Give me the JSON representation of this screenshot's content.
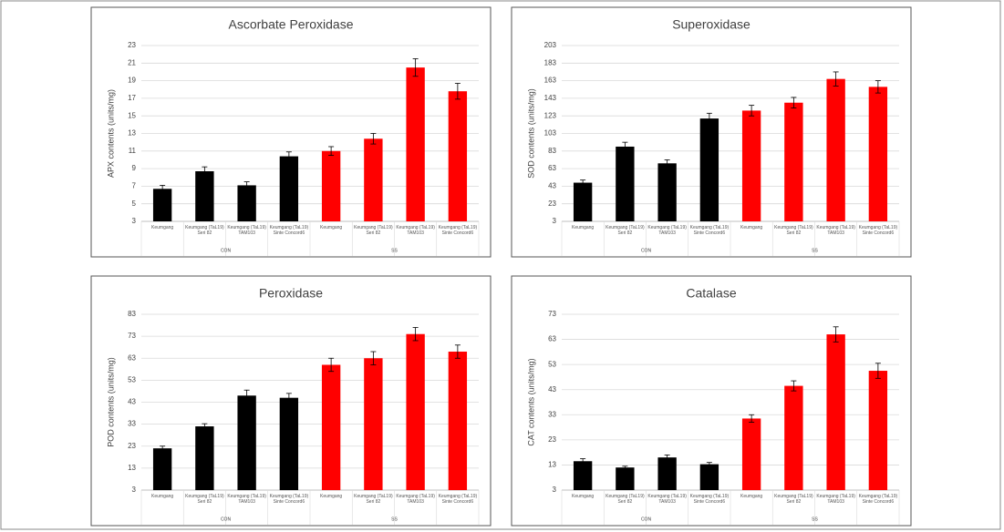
{
  "chart_data": [
    {
      "type": "bar",
      "title": "Ascorbate Peroxidase",
      "y_label": "APX contents (units/mg)",
      "categories": [
        "Keumgang",
        "Keumgang (TaL19) Seri 82",
        "Keumgang (TaL19) TAM103",
        "Keumgang (TaL19) Sinte Concord6",
        "Keumgang",
        "Keumgang (TaL19) Seri 82",
        "Keumgang (TaL19) TAM103",
        "Keumgang (TaL19) Sinte Concord6"
      ],
      "groups": [
        "CON",
        "SS"
      ],
      "values": [
        6.7,
        8.7,
        7.1,
        10.4,
        11.0,
        12.4,
        20.5,
        17.8
      ],
      "errors": [
        0.4,
        0.5,
        0.4,
        0.5,
        0.5,
        0.6,
        1.0,
        0.9
      ],
      "colors": [
        "#000000",
        "#000000",
        "#000000",
        "#000000",
        "#ff0000",
        "#ff0000",
        "#ff0000",
        "#ff0000"
      ],
      "ylim": [
        3,
        23
      ],
      "yticks": [
        3,
        5,
        7,
        9,
        11,
        13,
        15,
        17,
        19,
        21,
        23
      ],
      "grid": true
    },
    {
      "type": "bar",
      "title": "Superoxidase",
      "y_label": "SOD contents (units/mg)",
      "categories": [
        "Keumgang",
        "Keumgang (TaL19) Seri 82",
        "Keumgang (TaL19) TAM103",
        "Keumgang (TaL19) Sinte Concord6",
        "Keumgang",
        "Keumgang (TaL19) Seri 82",
        "Keumgang (TaL19) TAM103",
        "Keumgang (TaL19) Sinte Concord6"
      ],
      "groups": [
        "CON",
        "SS"
      ],
      "values": [
        47,
        88,
        69,
        120,
        129,
        138,
        165,
        156
      ],
      "errors": [
        3,
        5,
        4,
        6,
        6,
        6,
        8,
        7
      ],
      "colors": [
        "#000000",
        "#000000",
        "#000000",
        "#000000",
        "#ff0000",
        "#ff0000",
        "#ff0000",
        "#ff0000"
      ],
      "ylim": [
        3,
        203
      ],
      "yticks": [
        3,
        23,
        43,
        63,
        83,
        103,
        123,
        143,
        163,
        183,
        203
      ],
      "grid": true
    },
    {
      "type": "bar",
      "title": "Peroxidase",
      "y_label": "POD contents (units/mg)",
      "categories": [
        "Keumgang",
        "Keumgang (TaL19) Seri 82",
        "Keumgang (TaL19) TAM103",
        "Keumgang (TaL19) Sinte Concord6",
        "Keumgang",
        "Keumgang (TaL19) Seri 82",
        "Keumgang (TaL19) TAM103",
        "Keumgang (TaL19) Sinte Concord6"
      ],
      "groups": [
        "CON",
        "SS"
      ],
      "values": [
        22,
        32,
        46,
        45,
        60,
        63,
        74,
        66
      ],
      "errors": [
        1,
        1.2,
        2.5,
        2,
        3,
        3,
        3,
        3
      ],
      "colors": [
        "#000000",
        "#000000",
        "#000000",
        "#000000",
        "#ff0000",
        "#ff0000",
        "#ff0000",
        "#ff0000"
      ],
      "ylim": [
        3,
        83
      ],
      "yticks": [
        3,
        13,
        23,
        33,
        43,
        53,
        63,
        73,
        83
      ],
      "grid": true
    },
    {
      "type": "bar",
      "title": "Catalase",
      "y_label": "CAT contents (units/mg)",
      "categories": [
        "Keumgang",
        "Keumgang (TaL19) Seri 82",
        "Keumgang (TaL19) TAM103",
        "Keumgang (TaL19) Sinte Concord6",
        "Keumgang",
        "Keumgang (TaL19) Seri 82",
        "Keumgang (TaL19) TAM103",
        "Keumgang (TaL19) Sinte Concord6"
      ],
      "groups": [
        "CON",
        "SS"
      ],
      "values": [
        14.5,
        12,
        16,
        13.3,
        31.5,
        44.5,
        65,
        50.5
      ],
      "errors": [
        1,
        0.5,
        1,
        0.7,
        1.5,
        2,
        3,
        3
      ],
      "colors": [
        "#000000",
        "#000000",
        "#000000",
        "#000000",
        "#ff0000",
        "#ff0000",
        "#ff0000",
        "#ff0000"
      ],
      "ylim": [
        3,
        73
      ],
      "yticks": [
        3,
        13,
        23,
        33,
        43,
        53,
        63,
        73
      ],
      "grid": true
    }
  ]
}
